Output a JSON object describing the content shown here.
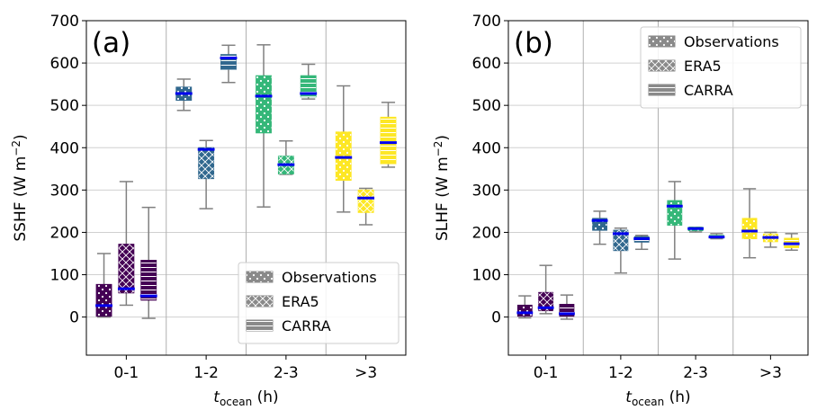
{
  "chart_data": [
    {
      "type": "box",
      "panel_label": "(a)",
      "ylabel": "SSHF (W m⁻²)",
      "xlabel": {
        "base": "t",
        "sub": "ocean",
        "suffix": " (h)"
      },
      "ylim": [
        -90,
        700
      ],
      "yticks": [
        0,
        100,
        200,
        300,
        400,
        500,
        600,
        700
      ],
      "categories": [
        "0-1",
        "1-2",
        "2-3",
        ">3"
      ],
      "grid": true,
      "legend_placement": "lower-right",
      "series": [
        {
          "name": "Observations",
          "hatch": "dots",
          "boxes": [
            {
              "whislo": 0,
              "q1": 2,
              "med": 27,
              "q3": 77,
              "whishi": 150
            },
            {
              "whislo": 488,
              "q1": 512,
              "med": 528,
              "q3": 543,
              "whishi": 562
            },
            {
              "whislo": 260,
              "q1": 435,
              "med": 522,
              "q3": 570,
              "whishi": 643
            },
            {
              "whislo": 248,
              "q1": 323,
              "med": 377,
              "q3": 437,
              "whishi": 546
            }
          ]
        },
        {
          "name": "ERA5",
          "hatch": "crosses",
          "boxes": [
            {
              "whislo": 28,
              "q1": 57,
              "med": 67,
              "q3": 172,
              "whishi": 320
            },
            {
              "whislo": 256,
              "q1": 327,
              "med": 396,
              "q3": 400,
              "whishi": 417
            },
            {
              "whislo": 337,
              "q1": 338,
              "med": 360,
              "q3": 380,
              "whishi": 416
            },
            {
              "whislo": 218,
              "q1": 247,
              "med": 281,
              "q3": 300,
              "whishi": 304
            }
          ]
        },
        {
          "name": "CARRA",
          "hatch": "lines",
          "boxes": [
            {
              "whislo": -3,
              "q1": 40,
              "med": 50,
              "q3": 134,
              "whishi": 259
            },
            {
              "whislo": 554,
              "q1": 585,
              "med": 612,
              "q3": 620,
              "whishi": 642
            },
            {
              "whislo": 515,
              "q1": 520,
              "med": 528,
              "q3": 570,
              "whishi": 597
            },
            {
              "whislo": 354,
              "q1": 362,
              "med": 412,
              "q3": 472,
              "whishi": 507
            }
          ]
        }
      ]
    },
    {
      "type": "box",
      "panel_label": "(b)",
      "ylabel": "SLHF (W m⁻²)",
      "xlabel": {
        "base": "t",
        "sub": "ocean",
        "suffix": " (h)"
      },
      "ylim": [
        -90,
        700
      ],
      "yticks": [
        0,
        100,
        200,
        300,
        400,
        500,
        600,
        700
      ],
      "categories": [
        "0-1",
        "1-2",
        "2-3",
        ">3"
      ],
      "grid": true,
      "legend_placement": "upper-right",
      "series": [
        {
          "name": "Observations",
          "hatch": "dots",
          "boxes": [
            {
              "whislo": -2,
              "q1": 2,
              "med": 10,
              "q3": 28,
              "whishi": 50
            },
            {
              "whislo": 172,
              "q1": 205,
              "med": 228,
              "q3": 233,
              "whishi": 250
            },
            {
              "whislo": 137,
              "q1": 217,
              "med": 262,
              "q3": 275,
              "whishi": 320
            },
            {
              "whislo": 140,
              "q1": 185,
              "med": 203,
              "q3": 233,
              "whishi": 303
            }
          ]
        },
        {
          "name": "ERA5",
          "hatch": "crosses",
          "boxes": [
            {
              "whislo": 8,
              "q1": 15,
              "med": 22,
              "q3": 58,
              "whishi": 122
            },
            {
              "whislo": 104,
              "q1": 157,
              "med": 197,
              "q3": 205,
              "whishi": 210
            },
            {
              "whislo": 201,
              "q1": 204,
              "med": 209,
              "q3": 212,
              "whishi": 212
            },
            {
              "whislo": 165,
              "q1": 178,
              "med": 188,
              "q3": 196,
              "whishi": 200
            }
          ]
        },
        {
          "name": "CARRA",
          "hatch": "lines",
          "boxes": [
            {
              "whislo": -5,
              "q1": 2,
              "med": 8,
              "q3": 30,
              "whishi": 52
            },
            {
              "whislo": 160,
              "q1": 177,
              "med": 185,
              "q3": 190,
              "whishi": 193
            },
            {
              "whislo": 185,
              "q1": 187,
              "med": 189,
              "q3": 193,
              "whishi": 197
            },
            {
              "whislo": 158,
              "q1": 164,
              "med": 173,
              "q3": 186,
              "whishi": 197
            }
          ]
        }
      ]
    }
  ],
  "style": {
    "category_colors": [
      "#440154",
      "#31688e",
      "#35b779",
      "#fde725"
    ],
    "median_color": "#0000ee",
    "whisker_color": "#808080",
    "grid_color": "#d0d0d0",
    "divider_color": "#b0b0b0",
    "legend_swatch_color": "#8a8a8a"
  }
}
